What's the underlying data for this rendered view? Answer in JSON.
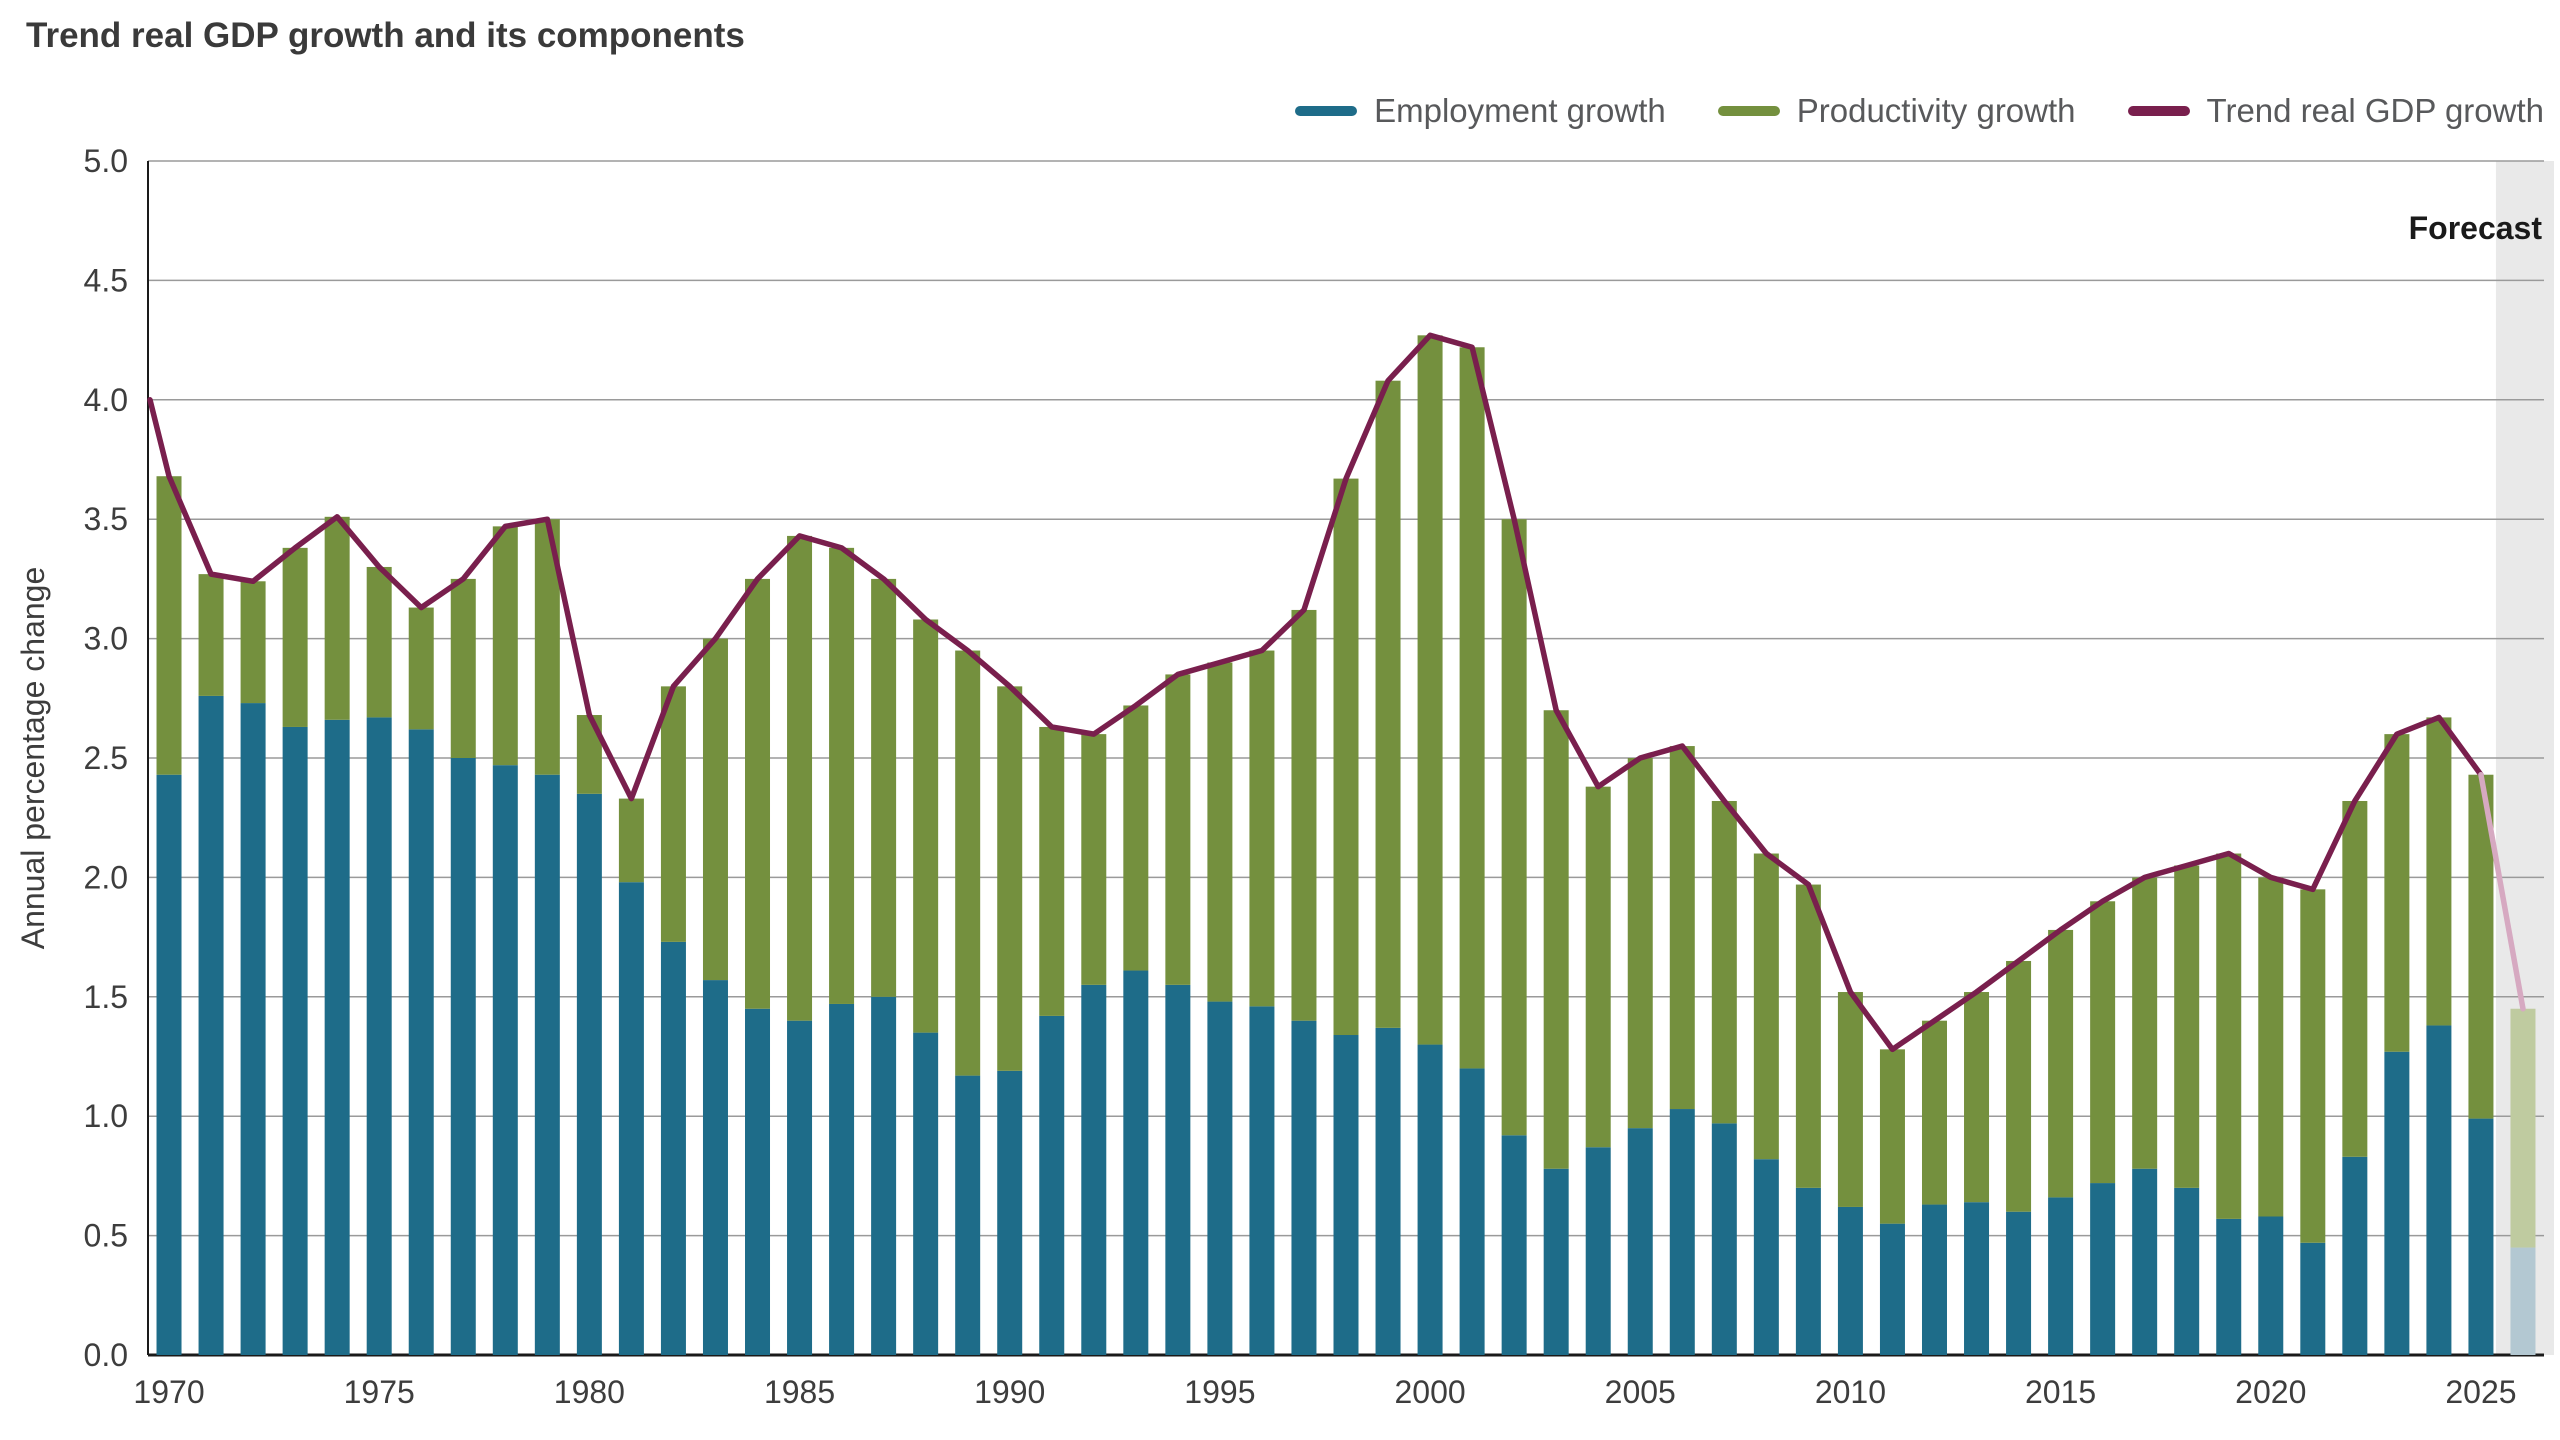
{
  "title": "Trend real GDP growth and its components",
  "ylabel": "Annual percentage change",
  "legend": {
    "employment": "Employment growth",
    "productivity": "Productivity growth",
    "trend": "Trend real GDP growth"
  },
  "chart_data": {
    "type": "bar",
    "subtype": "stacked-bar-with-line",
    "title": "Trend real GDP growth and its components",
    "xlabel": "",
    "ylabel": "Annual percentage change",
    "ylim": [
      0,
      5.0
    ],
    "yticks": [
      0.0,
      0.5,
      1.0,
      1.5,
      2.0,
      2.5,
      3.0,
      3.5,
      4.0,
      4.5,
      5.0
    ],
    "xticks": [
      1970,
      1975,
      1980,
      1985,
      1990,
      1995,
      2000,
      2005,
      2010,
      2015,
      2020,
      2025
    ],
    "grid": true,
    "legend_position": "top-right",
    "start_year": 1970,
    "end_year": 2026,
    "series": [
      {
        "name": "Employment growth",
        "color": "#1e6c89",
        "values": [
          2.43,
          2.76,
          2.73,
          2.63,
          2.66,
          2.67,
          2.62,
          2.5,
          2.47,
          2.43,
          2.35,
          1.98,
          1.73,
          1.57,
          1.45,
          1.4,
          1.47,
          1.5,
          1.35,
          1.17,
          1.19,
          1.42,
          1.55,
          1.61,
          1.55,
          1.48,
          1.46,
          1.4,
          1.34,
          1.37,
          1.3,
          1.2,
          0.92,
          0.78,
          0.87,
          0.95,
          1.03,
          0.97,
          0.82,
          0.7,
          0.62,
          0.55,
          0.63,
          0.64,
          0.6,
          0.66,
          0.72,
          0.78,
          0.7,
          0.57,
          0.58,
          0.47,
          0.83,
          1.27,
          1.38,
          0.99,
          0.45
        ]
      },
      {
        "name": "Productivity growth",
        "color": "#74903e",
        "values": [
          1.25,
          0.51,
          0.51,
          0.75,
          0.85,
          0.63,
          0.51,
          0.75,
          1.0,
          1.07,
          0.33,
          0.35,
          1.07,
          1.43,
          1.8,
          2.03,
          1.91,
          1.75,
          1.73,
          1.78,
          1.61,
          1.21,
          1.05,
          1.11,
          1.3,
          1.42,
          1.49,
          1.72,
          2.33,
          2.71,
          2.97,
          3.02,
          2.58,
          1.92,
          1.51,
          1.55,
          1.52,
          1.35,
          1.28,
          1.27,
          0.9,
          0.73,
          0.77,
          0.88,
          1.05,
          1.12,
          1.18,
          1.22,
          1.35,
          1.53,
          1.42,
          1.48,
          1.49,
          1.33,
          1.29,
          1.44,
          1.0
        ]
      }
    ],
    "line": {
      "name": "Trend real GDP growth",
      "color": "#791f4d",
      "lead_in_value": 4.0,
      "values": [
        3.68,
        3.27,
        3.24,
        3.38,
        3.51,
        3.3,
        3.13,
        3.25,
        3.47,
        3.5,
        2.68,
        2.33,
        2.8,
        3.0,
        3.25,
        3.43,
        3.38,
        3.25,
        3.08,
        2.95,
        2.8,
        2.63,
        2.6,
        2.72,
        2.85,
        2.9,
        2.95,
        3.12,
        3.67,
        4.08,
        4.27,
        4.22,
        3.5,
        2.7,
        2.38,
        2.5,
        2.55,
        2.32,
        2.1,
        1.97,
        1.52,
        1.28,
        1.4,
        1.52,
        1.65,
        1.78,
        1.9,
        2.0,
        2.05,
        2.1,
        2.0,
        1.95,
        2.32,
        2.6,
        2.67,
        2.43,
        1.45
      ]
    },
    "forecast": {
      "label": "Forecast",
      "start_year": 2026,
      "band_color": "#e9e9e9",
      "employment_color": "#b3c8d2",
      "productivity_color": "#bfcba0",
      "line_color": "#d6a9c1"
    }
  }
}
